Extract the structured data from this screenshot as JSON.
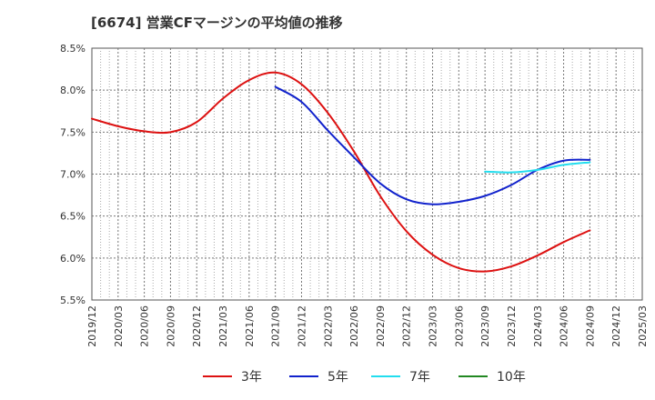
{
  "chart_data": {
    "type": "line",
    "title": "[6674]  営業CFマージンの平均値の推移",
    "xlabel": "",
    "ylabel": "",
    "x_ticks": [
      "2019/12",
      "2020/03",
      "2020/06",
      "2020/09",
      "2020/12",
      "2021/03",
      "2021/06",
      "2021/09",
      "2021/12",
      "2022/03",
      "2022/06",
      "2022/09",
      "2022/12",
      "2023/03",
      "2023/06",
      "2023/09",
      "2023/12",
      "2024/03",
      "2024/06",
      "2024/09",
      "2024/12",
      "2025/03"
    ],
    "y_ticks": [
      "5.5%",
      "6.0%",
      "6.5%",
      "7.0%",
      "7.5%",
      "8.0%",
      "8.5%"
    ],
    "ylim": [
      5.5,
      8.5
    ],
    "grid": true,
    "legend_position": "bottom",
    "series": [
      {
        "name": "3年",
        "color": "#dd1111",
        "points": [
          [
            "2019/12",
            7.66
          ],
          [
            "2020/03",
            7.57
          ],
          [
            "2020/06",
            7.51
          ],
          [
            "2020/09",
            7.5
          ],
          [
            "2020/12",
            7.62
          ],
          [
            "2021/03",
            7.9
          ],
          [
            "2021/06",
            8.12
          ],
          [
            "2021/09",
            8.21
          ],
          [
            "2021/12",
            8.07
          ],
          [
            "2022/03",
            7.73
          ],
          [
            "2022/06",
            7.27
          ],
          [
            "2022/09",
            6.74
          ],
          [
            "2022/12",
            6.32
          ],
          [
            "2023/03",
            6.04
          ],
          [
            "2023/06",
            5.88
          ],
          [
            "2023/09",
            5.84
          ],
          [
            "2023/12",
            5.9
          ],
          [
            "2024/03",
            6.03
          ],
          [
            "2024/06",
            6.19
          ],
          [
            "2024/09",
            6.33
          ]
        ]
      },
      {
        "name": "5年",
        "color": "#1122cc",
        "points": [
          [
            "2021/09",
            8.04
          ],
          [
            "2021/12",
            7.86
          ],
          [
            "2022/03",
            7.52
          ],
          [
            "2022/06",
            7.2
          ],
          [
            "2022/09",
            6.89
          ],
          [
            "2022/12",
            6.7
          ],
          [
            "2023/03",
            6.64
          ],
          [
            "2023/06",
            6.67
          ],
          [
            "2023/09",
            6.74
          ],
          [
            "2023/12",
            6.87
          ],
          [
            "2024/03",
            7.05
          ],
          [
            "2024/06",
            7.16
          ],
          [
            "2024/09",
            7.17
          ]
        ]
      },
      {
        "name": "7年",
        "color": "#22ddee",
        "points": [
          [
            "2023/09",
            7.03
          ],
          [
            "2023/12",
            7.02
          ],
          [
            "2024/03",
            7.05
          ],
          [
            "2024/06",
            7.11
          ],
          [
            "2024/09",
            7.14
          ]
        ]
      },
      {
        "name": "10年",
        "color": "#228822",
        "points": []
      }
    ]
  }
}
